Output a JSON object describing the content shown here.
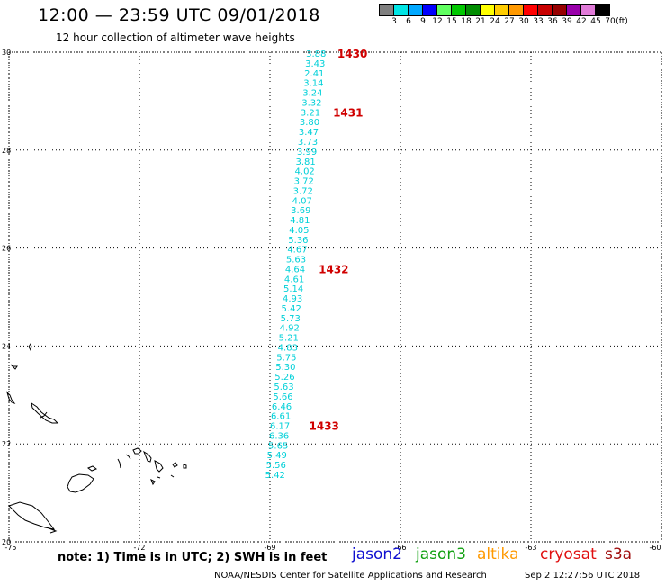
{
  "header": {
    "title": "12:00 — 23:59 UTC 09/01/2018",
    "subtitle": "12 hour collection of altimeter wave heights"
  },
  "legend_scale": {
    "labels": [
      "3",
      "6",
      "9",
      "12",
      "15",
      "18",
      "21",
      "24",
      "27",
      "30",
      "33",
      "36",
      "39",
      "42",
      "45",
      "70"
    ],
    "unit": "(ft)",
    "colors": [
      "#808080",
      "#00e5e5",
      "#00a8ff",
      "#0000ff",
      "#60ff60",
      "#00c800",
      "#008c00",
      "#ffff00",
      "#ffcc00",
      "#ff9900",
      "#ff0000",
      "#c80000",
      "#960000",
      "#9900aa",
      "#e07ad8",
      "#000000"
    ]
  },
  "map": {
    "lon_ticks": [
      "-75",
      "-72",
      "-69",
      "-66",
      "-63",
      "-60"
    ],
    "lat_ticks": [
      "30",
      "28",
      "26",
      "24",
      "22",
      "20"
    ],
    "lon_range": [
      -75,
      -60
    ],
    "lat_range": [
      20,
      30
    ],
    "grid": "dotted"
  },
  "chart_data": {
    "type": "scatter",
    "description_axis": "longitude vs latitude",
    "series": [
      {
        "name": "jason3",
        "values": [
          {
            "lat": 29.98,
            "lon": -67.94,
            "swh": "3.88"
          },
          {
            "lat": 29.78,
            "lon": -67.96,
            "swh": "3.43"
          },
          {
            "lat": 29.58,
            "lon": -67.98,
            "swh": "2.41"
          },
          {
            "lat": 29.38,
            "lon": -68.0,
            "swh": "3.14"
          },
          {
            "lat": 29.18,
            "lon": -68.02,
            "swh": "3.24"
          },
          {
            "lat": 28.98,
            "lon": -68.04,
            "swh": "3.32"
          },
          {
            "lat": 28.78,
            "lon": -68.07,
            "swh": "3.21"
          },
          {
            "lat": 28.58,
            "lon": -68.09,
            "swh": "3.80"
          },
          {
            "lat": 28.38,
            "lon": -68.11,
            "swh": "3.47"
          },
          {
            "lat": 28.18,
            "lon": -68.13,
            "swh": "3.73"
          },
          {
            "lat": 27.98,
            "lon": -68.15,
            "swh": "3.99"
          },
          {
            "lat": 27.78,
            "lon": -68.18,
            "swh": "3.81"
          },
          {
            "lat": 27.58,
            "lon": -68.2,
            "swh": "4.02"
          },
          {
            "lat": 27.38,
            "lon": -68.22,
            "swh": "3.72"
          },
          {
            "lat": 27.18,
            "lon": -68.24,
            "swh": "3.72"
          },
          {
            "lat": 26.98,
            "lon": -68.26,
            "swh": "4.07"
          },
          {
            "lat": 26.78,
            "lon": -68.29,
            "swh": "3.69"
          },
          {
            "lat": 26.58,
            "lon": -68.31,
            "swh": "4.81"
          },
          {
            "lat": 26.38,
            "lon": -68.33,
            "swh": "4.05"
          },
          {
            "lat": 26.18,
            "lon": -68.35,
            "swh": "5.36"
          },
          {
            "lat": 25.98,
            "lon": -68.37,
            "swh": "4.67"
          },
          {
            "lat": 25.78,
            "lon": -68.4,
            "swh": "5.63"
          },
          {
            "lat": 25.58,
            "lon": -68.42,
            "swh": "4.64"
          },
          {
            "lat": 25.38,
            "lon": -68.44,
            "swh": "4.61"
          },
          {
            "lat": 25.18,
            "lon": -68.46,
            "swh": "5.14"
          },
          {
            "lat": 24.98,
            "lon": -68.48,
            "swh": "4.93"
          },
          {
            "lat": 24.78,
            "lon": -68.51,
            "swh": "5.42"
          },
          {
            "lat": 24.58,
            "lon": -68.53,
            "swh": "5.73"
          },
          {
            "lat": 24.38,
            "lon": -68.55,
            "swh": "4.92"
          },
          {
            "lat": 24.18,
            "lon": -68.57,
            "swh": "5.21"
          },
          {
            "lat": 23.98,
            "lon": -68.59,
            "swh": "4.83"
          },
          {
            "lat": 23.78,
            "lon": -68.62,
            "swh": "5.75"
          },
          {
            "lat": 23.58,
            "lon": -68.64,
            "swh": "5.30"
          },
          {
            "lat": 23.38,
            "lon": -68.66,
            "swh": "5.26"
          },
          {
            "lat": 23.18,
            "lon": -68.68,
            "swh": "5.63"
          },
          {
            "lat": 22.98,
            "lon": -68.7,
            "swh": "5.66"
          },
          {
            "lat": 22.78,
            "lon": -68.73,
            "swh": "6.46"
          },
          {
            "lat": 22.58,
            "lon": -68.75,
            "swh": "6.61"
          },
          {
            "lat": 22.38,
            "lon": -68.77,
            "swh": "6.17"
          },
          {
            "lat": 22.18,
            "lon": -68.79,
            "swh": "6.36"
          },
          {
            "lat": 21.98,
            "lon": -68.81,
            "swh": "5.65"
          },
          {
            "lat": 21.78,
            "lon": -68.84,
            "swh": "5.49"
          },
          {
            "lat": 21.58,
            "lon": -68.86,
            "swh": "5.56"
          },
          {
            "lat": 21.38,
            "lon": -68.88,
            "swh": "5.42"
          }
        ]
      }
    ],
    "time_labels": [
      {
        "text": "1430",
        "lat": 29.98,
        "lon": -67.45
      },
      {
        "text": "1431",
        "lat": 28.78,
        "lon": -67.55
      },
      {
        "text": "1432",
        "lat": 25.58,
        "lon": -67.88
      },
      {
        "text": "1433",
        "lat": 22.38,
        "lon": -68.1
      }
    ]
  },
  "footer": {
    "note": "note:  1) Time is in UTC;  2) SWH is in feet",
    "satellites": [
      {
        "name": "jason2",
        "color": "#1010d0"
      },
      {
        "name": "jason3",
        "color": "#10a010"
      },
      {
        "name": "altika",
        "color": "#ff9900"
      },
      {
        "name": "cryosat",
        "color": "#e01010"
      },
      {
        "name": "s3a",
        "color": "#a01010"
      }
    ],
    "credit": "NOAA/NESDIS Center for Satellite Applications and Research",
    "generated": "Sep  2 12:27:56 UTC 2018"
  },
  "colors": {
    "data_text": "#00d0d8",
    "time_label": "#d00000"
  }
}
